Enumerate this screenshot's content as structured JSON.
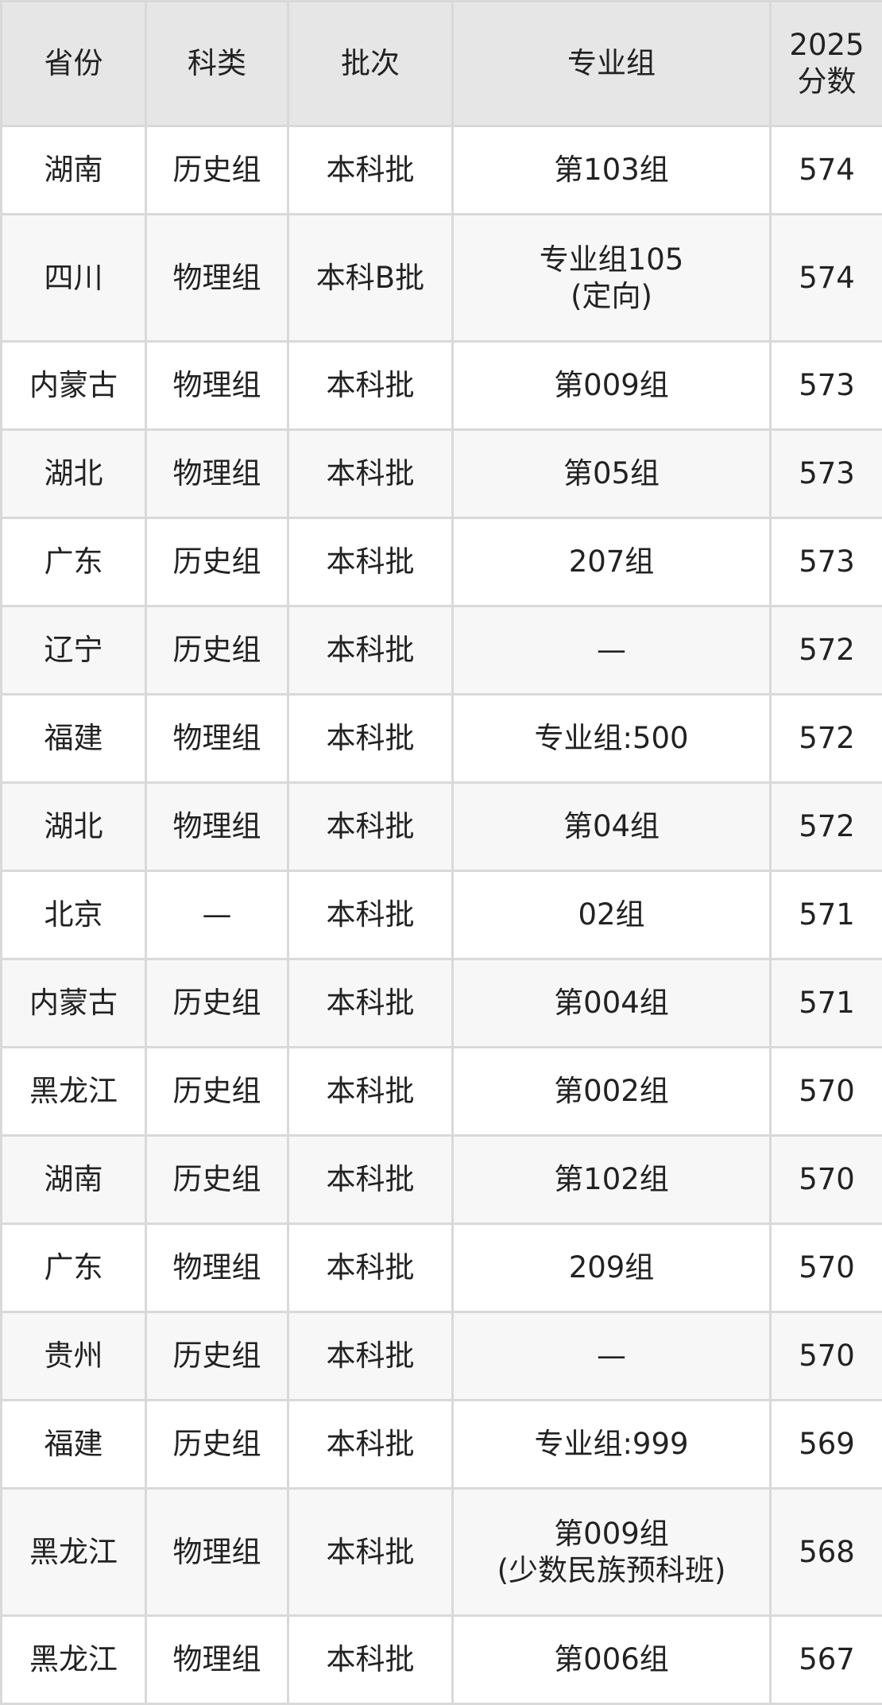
{
  "headers": [
    "省份",
    "科类",
    "批次",
    "专业组",
    "2025\n分数"
  ],
  "header_score_line1": "2025",
  "header_score_line2": "分数",
  "rows": [
    [
      "湖南",
      "历史组",
      "本科批",
      "第103组",
      "574"
    ],
    [
      "四川",
      "物理组",
      "本科B批",
      "专业组105\n(定向)",
      "574"
    ],
    [
      "内蒙古",
      "物理组",
      "本科批",
      "第009组",
      "573"
    ],
    [
      "湖北",
      "物理组",
      "本科批",
      "第05组",
      "573"
    ],
    [
      "广东",
      "历史组",
      "本科批",
      "207组",
      "573"
    ],
    [
      "辽宁",
      "历史组",
      "本科批",
      "—",
      "572"
    ],
    [
      "福建",
      "物理组",
      "本科批",
      "专业组:500",
      "572"
    ],
    [
      "湖北",
      "物理组",
      "本科批",
      "第04组",
      "572"
    ],
    [
      "北京",
      "—",
      "本科批",
      "02组",
      "571"
    ],
    [
      "内蒙古",
      "历史组",
      "本科批",
      "第004组",
      "571"
    ],
    [
      "黑龙江",
      "历史组",
      "本科批",
      "第002组",
      "570"
    ],
    [
      "湖南",
      "历史组",
      "本科批",
      "第102组",
      "570"
    ],
    [
      "广东",
      "物理组",
      "本科批",
      "209组",
      "570"
    ],
    [
      "贵州",
      "历史组",
      "本科批",
      "—",
      "570"
    ],
    [
      "福建",
      "历史组",
      "本科批",
      "专业组:999",
      "569"
    ],
    [
      "黑龙江",
      "物理组",
      "本科批",
      "第009组\n(少数民族预科班)",
      "568"
    ],
    [
      "黑龙江",
      "物理组",
      "本科批",
      "第006组",
      "567"
    ]
  ]
}
